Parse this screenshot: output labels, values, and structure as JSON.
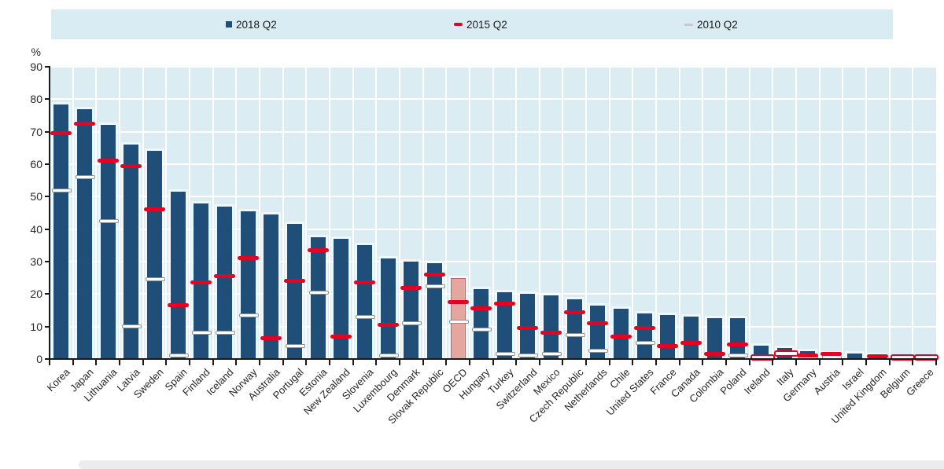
{
  "chart_data": {
    "type": "bar",
    "title": "",
    "unit": "%",
    "ylim": [
      0,
      90
    ],
    "y_ticks": [
      90,
      80,
      70,
      60,
      50,
      40,
      30,
      20,
      10,
      0
    ],
    "grid": true,
    "legend_position": "top",
    "categories": [
      "Korea",
      "Japan",
      "Lithuania",
      "Latvia",
      "Sweden",
      "Spain",
      "Finland",
      "Iceland",
      "Norway",
      "Australia",
      "Portugal",
      "Estonia",
      "New Zealand",
      "Slovenia",
      "Luxembourg",
      "Denmark",
      "Slovak Republic",
      "OECD",
      "Hungary",
      "Turkey",
      "Switzerland",
      "Mexico",
      "Czech Republic",
      "Netherlands",
      "Chile",
      "United States",
      "France",
      "Canada",
      "Colombia",
      "Poland",
      "Ireland",
      "Italy",
      "Germany",
      "Austria",
      "Israel",
      "United Kingdom",
      "Belgium",
      "Greece"
    ],
    "series": [
      {
        "name": "2018 Q2",
        "style": "bar",
        "color": "#1F4E79",
        "values": [
          78.5,
          77,
          72,
          66,
          64,
          51.5,
          48,
          47,
          45.5,
          44.5,
          41.5,
          37.5,
          37,
          35,
          31,
          30,
          29.5,
          25,
          21.5,
          20.5,
          20,
          19.5,
          18.5,
          16.5,
          15.5,
          14,
          13.5,
          13,
          12.5,
          12.5,
          4,
          3.5,
          2.5,
          1.8,
          1.7,
          1.3,
          0.3,
          0.2
        ]
      },
      {
        "name": "2015 Q2",
        "style": "dash",
        "color": "#E60021",
        "values": [
          69.5,
          72.5,
          61,
          59.5,
          46,
          16.5,
          23.5,
          25.5,
          31,
          6.5,
          24,
          33.5,
          7,
          23.5,
          10.5,
          22,
          26,
          17.5,
          15.5,
          17,
          9.5,
          8,
          14.5,
          11,
          7,
          9.5,
          4,
          5,
          1.5,
          4.5,
          0.3,
          2,
          1.2,
          1.5,
          null,
          0.2,
          0.4,
          0.4
        ]
      },
      {
        "name": "2010 Q2",
        "style": "dash",
        "color": "#FFFFFF",
        "border_color": "#8c9196",
        "values": [
          52,
          56,
          42.5,
          10,
          24.5,
          1,
          8,
          8,
          13.5,
          null,
          4,
          20.5,
          null,
          13,
          1,
          11,
          22.5,
          11.5,
          9,
          1.5,
          1,
          1.5,
          7.5,
          2.5,
          null,
          5,
          null,
          null,
          null,
          1,
          null,
          null,
          0.3,
          0.5,
          null,
          null,
          null,
          null
        ]
      }
    ],
    "highlight": {
      "category": "OECD",
      "fill": "#E4A69F",
      "border": "#B96A62"
    },
    "hollow_2015_categories": [
      "Ireland",
      "Italy",
      "Belgium",
      "Greece"
    ]
  },
  "colors": {
    "bar": "#1F4E79",
    "dash_2015": "#E60021",
    "dash_2010_fill": "#FFFFFF",
    "dash_2010_border": "#8c9196",
    "plot_background": "#dbedf3",
    "legend_background": "#d9ecf3",
    "gridline": "#ffffff",
    "axis": "#1a1a1a",
    "oecd_fill": "#E4A69F"
  }
}
